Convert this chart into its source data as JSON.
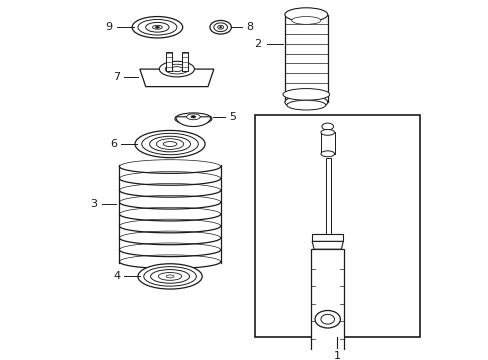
{
  "bg_color": "#ffffff",
  "line_color": "#1a1a1a",
  "fig_w": 4.89,
  "fig_h": 3.6,
  "dpi": 100,
  "parts": {
    "layout": "normalized 0-1 coords, y=0 bottom, y=1 top"
  }
}
